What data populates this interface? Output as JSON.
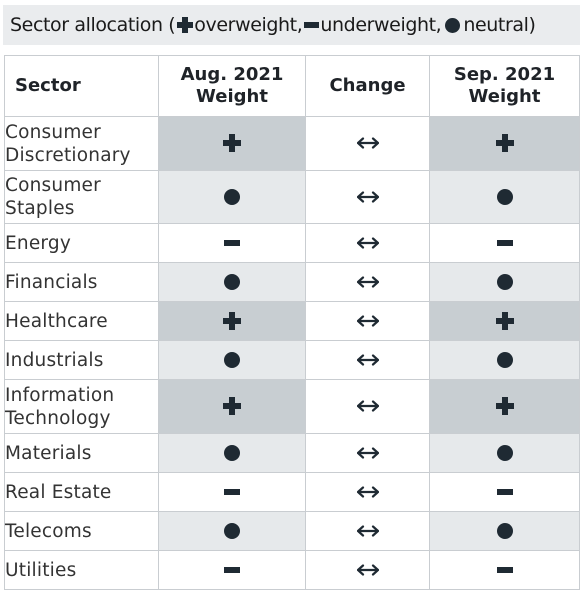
{
  "title": {
    "prefix": "Sector allocation (",
    "overweight": "overweight,",
    "underweight": "underweight,",
    "neutral": "neutral)"
  },
  "table": {
    "headers": {
      "sector": "Sector",
      "aug": "Aug. 2021 Weight",
      "change": "Change",
      "sep": "Sep. 2021 Weight"
    },
    "rows": [
      {
        "sector": "Consumer Discretionary",
        "aug": "overweight",
        "change": "unchanged",
        "sep": "overweight"
      },
      {
        "sector": "Consumer Staples",
        "aug": "neutral",
        "change": "unchanged",
        "sep": "neutral"
      },
      {
        "sector": "Energy",
        "aug": "underweight",
        "change": "unchanged",
        "sep": "underweight"
      },
      {
        "sector": "Financials",
        "aug": "neutral",
        "change": "unchanged",
        "sep": "neutral"
      },
      {
        "sector": "Healthcare",
        "aug": "overweight",
        "change": "unchanged",
        "sep": "overweight"
      },
      {
        "sector": "Industrials",
        "aug": "neutral",
        "change": "unchanged",
        "sep": "neutral"
      },
      {
        "sector": "Information Technology",
        "aug": "overweight",
        "change": "unchanged",
        "sep": "overweight"
      },
      {
        "sector": "Materials",
        "aug": "neutral",
        "change": "unchanged",
        "sep": "neutral"
      },
      {
        "sector": "Real Estate",
        "aug": "underweight",
        "change": "unchanged",
        "sep": "underweight"
      },
      {
        "sector": "Telecoms",
        "aug": "neutral",
        "change": "unchanged",
        "sep": "neutral"
      },
      {
        "sector": "Utilities",
        "aug": "underweight",
        "change": "unchanged",
        "sep": "underweight"
      }
    ]
  },
  "colors": {
    "overweight_bg": "#c8ced2",
    "neutral_bg": "#e6e9eb",
    "underweight_bg": "#ffffff",
    "icon": "#1f2a33",
    "title_bg": "#eaecee"
  },
  "icons": {
    "overweight": "plus-icon",
    "underweight": "minus-icon",
    "neutral": "dot-icon",
    "change_unchanged": "double-arrow-icon"
  }
}
